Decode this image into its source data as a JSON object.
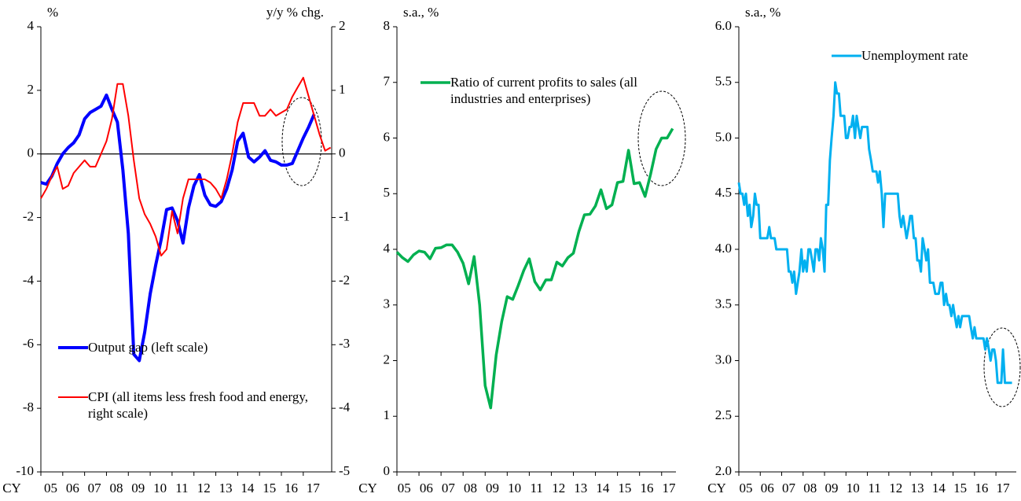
{
  "chart_data": [
    {
      "type": "line",
      "xlabel": "CY",
      "ylabel": "%",
      "y2label": "y/y % chg.",
      "x": [
        2005,
        2005.25,
        2005.5,
        2005.75,
        2006,
        2006.25,
        2006.5,
        2006.75,
        2007,
        2007.25,
        2007.5,
        2007.75,
        2008,
        2008.25,
        2008.5,
        2008.75,
        2009,
        2009.25,
        2009.5,
        2009.75,
        2010,
        2010.25,
        2010.5,
        2010.75,
        2011,
        2011.25,
        2011.5,
        2011.75,
        2012,
        2012.25,
        2012.5,
        2012.75,
        2013,
        2013.25,
        2013.5,
        2013.75,
        2014,
        2014.25,
        2014.5,
        2014.75,
        2015,
        2015.25,
        2015.5,
        2015.75,
        2016,
        2016.25,
        2016.5,
        2016.75,
        2017,
        2017.25,
        2017.5,
        2017.75,
        2018,
        2018.25
      ],
      "series": [
        {
          "name": "Output gap (left scale)",
          "color": "#0000ff",
          "values": [
            -0.9,
            -0.95,
            -0.7,
            -0.3,
            0.0,
            0.2,
            0.35,
            0.6,
            1.1,
            1.3,
            1.4,
            1.5,
            1.85,
            1.4,
            1.0,
            -0.5,
            -2.5,
            -6.3,
            -6.5,
            -5.6,
            -4.4,
            -3.5,
            -2.7,
            -1.75,
            -1.7,
            -2.1,
            -2.8,
            -1.7,
            -1.0,
            -0.65,
            -1.3,
            -1.6,
            -1.65,
            -1.5,
            -1.1,
            -0.5,
            0.4,
            0.65,
            -0.1,
            -0.25,
            -0.1,
            0.1,
            -0.2,
            -0.25,
            -0.35,
            -0.35,
            -0.3,
            0.1,
            0.5,
            0.85,
            1.25,
            null,
            null,
            null
          ]
        },
        {
          "name": "CPI (all items less fresh food and energy, right scale)",
          "color": "#ff0000",
          "axis": "y2",
          "values": [
            -0.7,
            -0.55,
            -0.35,
            -0.2,
            -0.55,
            -0.5,
            -0.3,
            -0.2,
            -0.1,
            -0.2,
            -0.2,
            0.0,
            0.2,
            0.55,
            1.1,
            1.1,
            0.6,
            -0.1,
            -0.7,
            -0.95,
            -1.1,
            -1.3,
            -1.6,
            -1.5,
            -0.9,
            -1.25,
            -0.7,
            -0.4,
            -0.4,
            -0.4,
            -0.4,
            -0.45,
            -0.55,
            -0.7,
            -0.4,
            0.0,
            0.5,
            0.8,
            0.8,
            0.8,
            0.6,
            0.6,
            0.7,
            0.6,
            0.65,
            0.7,
            0.9,
            1.05,
            1.2,
            0.9,
            0.6,
            0.3,
            0.05,
            0.1
          ]
        }
      ],
      "xlim": [
        2005,
        2018.3
      ],
      "xticks": [
        {
          "value": 2005,
          "label": "05"
        },
        {
          "value": 2006,
          "label": "06"
        },
        {
          "value": 2007,
          "label": "07"
        },
        {
          "value": 2008,
          "label": "08"
        },
        {
          "value": 2009,
          "label": "09"
        },
        {
          "value": 2010,
          "label": "10"
        },
        {
          "value": 2011,
          "label": "11"
        },
        {
          "value": 2012,
          "label": "12"
        },
        {
          "value": 2013,
          "label": "13"
        },
        {
          "value": 2014,
          "label": "14"
        },
        {
          "value": 2015,
          "label": "15"
        },
        {
          "value": 2016,
          "label": "16"
        },
        {
          "value": 2017,
          "label": "17"
        }
      ],
      "ylim": [
        -10,
        4
      ],
      "yticks": [
        -10,
        -8,
        -6,
        -4,
        -2,
        0,
        2,
        4
      ],
      "y2lim": [
        -5,
        2
      ],
      "y2ticks": [
        -5,
        -4,
        -3,
        -2,
        -1,
        0,
        1,
        2
      ],
      "zero_line": true,
      "legend": "lower left"
    },
    {
      "type": "line",
      "xlabel": "CY",
      "ylabel": "s.a., %",
      "x": [
        2005,
        2005.25,
        2005.5,
        2005.75,
        2006,
        2006.25,
        2006.5,
        2006.75,
        2007,
        2007.25,
        2007.5,
        2007.75,
        2008,
        2008.25,
        2008.5,
        2008.75,
        2009,
        2009.25,
        2009.5,
        2009.75,
        2010,
        2010.25,
        2010.5,
        2010.75,
        2011,
        2011.25,
        2011.5,
        2011.75,
        2012,
        2012.25,
        2012.5,
        2012.75,
        2013,
        2013.25,
        2013.5,
        2013.75,
        2014,
        2014.25,
        2014.5,
        2014.75,
        2015,
        2015.25,
        2015.5,
        2015.75,
        2016,
        2016.25,
        2016.5,
        2016.75,
        2017,
        2017.25,
        2017.5
      ],
      "series": [
        {
          "name": "Ratio of current profits to sales (all industries and enterprises)",
          "color": "#00b050",
          "values": [
            3.95,
            3.85,
            3.78,
            3.9,
            3.97,
            3.95,
            3.83,
            4.02,
            4.03,
            4.08,
            4.08,
            3.95,
            3.75,
            3.38,
            3.87,
            3.0,
            1.55,
            1.15,
            2.1,
            2.7,
            3.15,
            3.1,
            3.35,
            3.62,
            3.83,
            3.42,
            3.27,
            3.45,
            3.45,
            3.77,
            3.7,
            3.85,
            3.93,
            4.32,
            4.62,
            4.63,
            4.78,
            5.07,
            4.73,
            4.8,
            5.2,
            5.22,
            5.78,
            5.18,
            5.2,
            4.95,
            5.35,
            5.8,
            6.0,
            6.0,
            6.17
          ]
        }
      ],
      "xlim": [
        2005,
        2017.65
      ],
      "xticks": [
        {
          "value": 2005,
          "label": "05"
        },
        {
          "value": 2006,
          "label": "06"
        },
        {
          "value": 2007,
          "label": "07"
        },
        {
          "value": 2008,
          "label": "08"
        },
        {
          "value": 2009,
          "label": "09"
        },
        {
          "value": 2010,
          "label": "10"
        },
        {
          "value": 2011,
          "label": "11"
        },
        {
          "value": 2012,
          "label": "12"
        },
        {
          "value": 2013,
          "label": "13"
        },
        {
          "value": 2014,
          "label": "14"
        },
        {
          "value": 2015,
          "label": "15"
        },
        {
          "value": 2016,
          "label": "16"
        },
        {
          "value": 2017,
          "label": "17"
        }
      ],
      "ylim": [
        0,
        8
      ],
      "yticks": [
        0,
        1,
        2,
        3,
        4,
        5,
        6,
        7,
        8
      ],
      "legend": "upper left"
    },
    {
      "type": "line",
      "xlabel": "CY",
      "ylabel": "s.a., %",
      "x": [
        2005,
        2005.08,
        2005.17,
        2005.25,
        2005.33,
        2005.42,
        2005.5,
        2005.58,
        2005.67,
        2005.75,
        2005.83,
        2005.92,
        2006,
        2006.08,
        2006.17,
        2006.25,
        2006.33,
        2006.42,
        2006.5,
        2006.58,
        2006.67,
        2006.75,
        2006.83,
        2006.92,
        2007,
        2007.08,
        2007.17,
        2007.25,
        2007.33,
        2007.42,
        2007.5,
        2007.58,
        2007.67,
        2007.75,
        2007.83,
        2007.92,
        2008,
        2008.08,
        2008.17,
        2008.25,
        2008.33,
        2008.42,
        2008.5,
        2008.58,
        2008.67,
        2008.75,
        2008.83,
        2008.92,
        2009,
        2009.08,
        2009.17,
        2009.25,
        2009.33,
        2009.42,
        2009.5,
        2009.58,
        2009.67,
        2009.75,
        2009.83,
        2009.92,
        2010,
        2010.08,
        2010.17,
        2010.25,
        2010.33,
        2010.42,
        2010.5,
        2010.58,
        2010.67,
        2010.75,
        2010.83,
        2010.92,
        2011,
        2011.08,
        2011.17,
        2011.25,
        2011.33,
        2011.42,
        2011.5,
        2011.58,
        2011.67,
        2011.75,
        2011.83,
        2011.92,
        2012,
        2012.08,
        2012.17,
        2012.25,
        2012.33,
        2012.42,
        2012.5,
        2012.58,
        2012.67,
        2012.75,
        2012.83,
        2012.92,
        2013,
        2013.08,
        2013.17,
        2013.25,
        2013.33,
        2013.42,
        2013.5,
        2013.58,
        2013.67,
        2013.75,
        2013.83,
        2013.92,
        2014,
        2014.08,
        2014.17,
        2014.25,
        2014.33,
        2014.42,
        2014.5,
        2014.58,
        2014.67,
        2014.75,
        2014.83,
        2014.92,
        2015,
        2015.08,
        2015.17,
        2015.25,
        2015.33,
        2015.42,
        2015.5,
        2015.58,
        2015.67,
        2015.75,
        2015.83,
        2015.92,
        2016,
        2016.08,
        2016.17,
        2016.25,
        2016.33,
        2016.42,
        2016.5,
        2016.58,
        2016.67,
        2016.75,
        2016.83,
        2016.92,
        2017,
        2017.08,
        2017.17,
        2017.25,
        2017.33,
        2017.42,
        2017.5,
        2017.58,
        2017.67,
        2017.75
      ],
      "series": [
        {
          "name": "Unemployment rate",
          "color": "#00b0f0",
          "values": [
            4.6,
            4.5,
            4.5,
            4.4,
            4.5,
            4.3,
            4.4,
            4.2,
            4.3,
            4.5,
            4.4,
            4.4,
            4.1,
            4.1,
            4.1,
            4.1,
            4.1,
            4.2,
            4.1,
            4.1,
            4.1,
            4.0,
            4.0,
            4.0,
            4.0,
            4.0,
            4.0,
            4.0,
            3.8,
            3.8,
            3.7,
            3.8,
            3.6,
            3.7,
            3.8,
            4.0,
            3.8,
            3.9,
            3.8,
            4.0,
            4.0,
            3.9,
            3.8,
            4.0,
            4.0,
            3.9,
            4.1,
            4.0,
            3.8,
            4.4,
            4.4,
            4.8,
            5.0,
            5.2,
            5.5,
            5.4,
            5.4,
            5.2,
            5.2,
            5.2,
            5.0,
            5.0,
            5.1,
            5.1,
            5.2,
            5.0,
            5.2,
            5.1,
            5.0,
            5.1,
            5.1,
            5.1,
            5.1,
            4.9,
            4.8,
            4.7,
            4.7,
            4.7,
            4.6,
            4.7,
            4.5,
            4.2,
            4.5,
            4.5,
            4.5,
            4.5,
            4.5,
            4.5,
            4.5,
            4.5,
            4.3,
            4.2,
            4.3,
            4.2,
            4.1,
            4.2,
            4.3,
            4.3,
            4.1,
            4.1,
            3.9,
            3.9,
            3.8,
            4.1,
            4.0,
            3.9,
            4.0,
            3.7,
            3.7,
            3.7,
            3.6,
            3.6,
            3.6,
            3.7,
            3.7,
            3.5,
            3.6,
            3.5,
            3.5,
            3.4,
            3.5,
            3.4,
            3.3,
            3.4,
            3.3,
            3.4,
            3.4,
            3.4,
            3.4,
            3.4,
            3.3,
            3.2,
            3.3,
            3.2,
            3.2,
            3.2,
            3.2,
            3.2,
            3.1,
            3.2,
            3.1,
            3.0,
            3.1,
            3.1,
            3.0,
            2.8,
            2.8,
            2.8,
            3.1,
            2.8,
            2.8,
            2.8,
            2.8,
            2.8
          ]
        }
      ],
      "xlim": [
        2005,
        2017.95
      ],
      "xticks": [
        {
          "value": 2005,
          "label": "05"
        },
        {
          "value": 2006,
          "label": "06"
        },
        {
          "value": 2007,
          "label": "07"
        },
        {
          "value": 2008,
          "label": "08"
        },
        {
          "value": 2009,
          "label": "09"
        },
        {
          "value": 2010,
          "label": "10"
        },
        {
          "value": 2011,
          "label": "11"
        },
        {
          "value": 2012,
          "label": "12"
        },
        {
          "value": 2013,
          "label": "13"
        },
        {
          "value": 2014,
          "label": "14"
        },
        {
          "value": 2015,
          "label": "15"
        },
        {
          "value": 2016,
          "label": "16"
        },
        {
          "value": 2017,
          "label": "17"
        }
      ],
      "ylim": [
        2,
        6
      ],
      "yticks": [
        {
          "value": 2,
          "label": "2.0"
        },
        2.5,
        {
          "value": 3,
          "label": "3.0"
        },
        3.5,
        {
          "value": 4,
          "label": "4.0"
        },
        4.5,
        {
          "value": 5,
          "label": "5.0"
        },
        5.5,
        {
          "value": 6,
          "label": "6.0"
        }
      ],
      "legend": "upper right"
    }
  ]
}
